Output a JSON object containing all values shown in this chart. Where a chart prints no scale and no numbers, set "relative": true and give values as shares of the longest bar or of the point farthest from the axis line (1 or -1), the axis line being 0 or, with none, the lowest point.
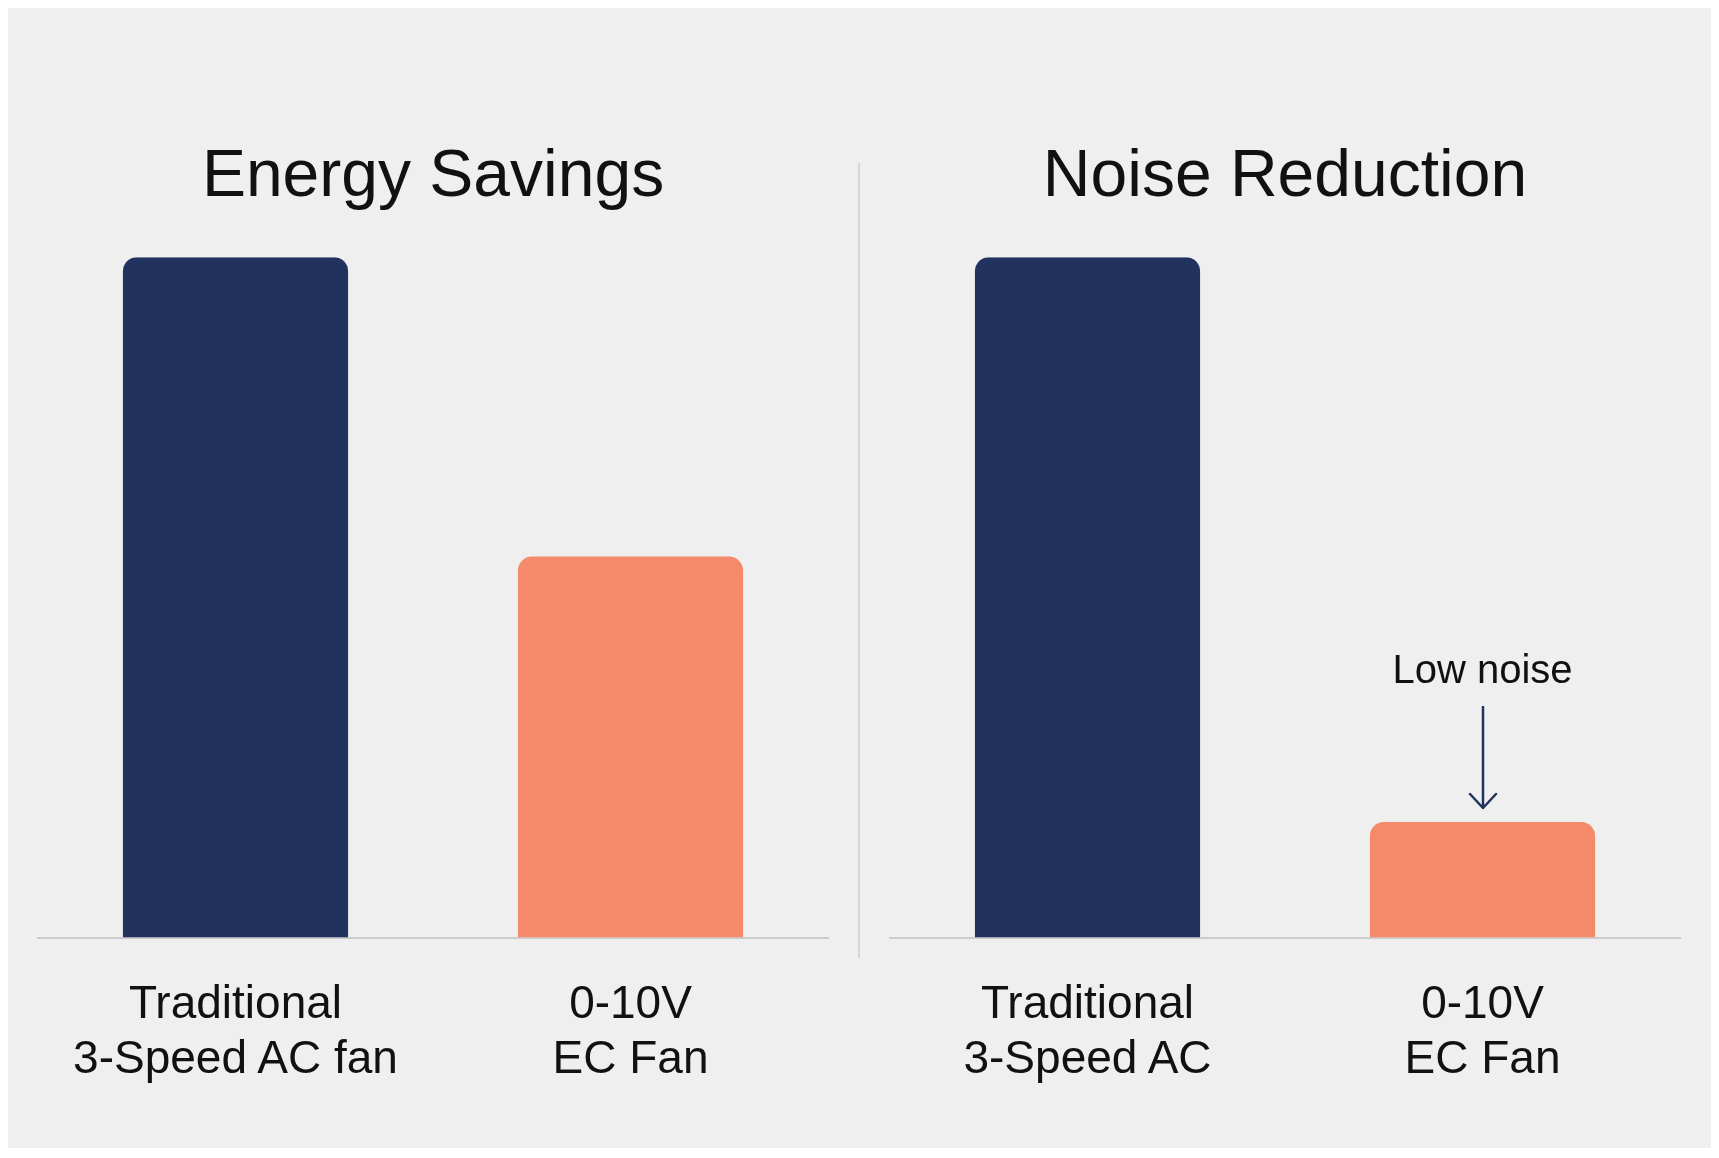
{
  "chart_data": [
    {
      "type": "bar",
      "title": "Energy Savings",
      "relative": true,
      "categories": [
        "Traditional\n3-Speed AC fan",
        "0-10V\nEC Fan"
      ],
      "values": [
        1,
        0.56
      ],
      "colors": [
        "#22325e",
        "#f48a6a"
      ],
      "grid": false,
      "legend": false
    },
    {
      "type": "bar",
      "title": "Noise Reduction",
      "relative": true,
      "categories": [
        "Traditional\n3-Speed AC",
        "0-10V\nEC Fan"
      ],
      "values": [
        1,
        0.17
      ],
      "colors": [
        "#22325e",
        "#f48a6a"
      ],
      "grid": false,
      "legend": false,
      "annotations": [
        "Low noise"
      ]
    }
  ]
}
